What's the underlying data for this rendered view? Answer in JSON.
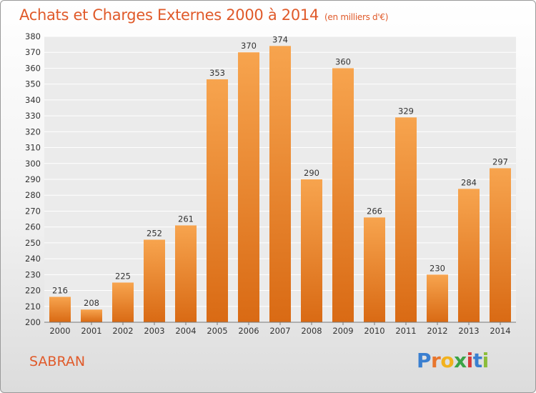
{
  "header": {
    "title": "Achats et Charges Externes 2000 à 2014",
    "subtitle": "(en milliers d'€)"
  },
  "commune": "SABRAN",
  "logo": {
    "letters": [
      "P",
      "r",
      "o",
      "x",
      "i",
      "t",
      "i"
    ],
    "colors": [
      "#3a7fd0",
      "#e8762d",
      "#f2b21e",
      "#3aa346",
      "#d63a3a",
      "#3a7fd0",
      "#8bbd3a"
    ]
  },
  "chart_data": {
    "type": "bar",
    "categories": [
      "2000",
      "2001",
      "2002",
      "2003",
      "2004",
      "2005",
      "2006",
      "2007",
      "2008",
      "2009",
      "2010",
      "2011",
      "2012",
      "2013",
      "2014"
    ],
    "values": [
      216,
      208,
      225,
      252,
      261,
      353,
      370,
      374,
      290,
      360,
      266,
      329,
      230,
      284,
      297
    ],
    "value_labels": [
      "216",
      "208",
      "225",
      "252",
      "261",
      "353",
      "370",
      "374",
      "290",
      "360",
      "266",
      "329",
      "230",
      "284",
      "297"
    ],
    "title": "Achats et Charges Externes 2000 à 2014",
    "ylim": [
      200,
      380
    ],
    "yticks": [
      "200",
      "210",
      "220",
      "230",
      "240",
      "250",
      "260",
      "270",
      "280",
      "290",
      "300",
      "310",
      "320",
      "330",
      "340",
      "350",
      "360",
      "370",
      "380"
    ],
    "grid": true,
    "bar_color": "#f0913c"
  }
}
